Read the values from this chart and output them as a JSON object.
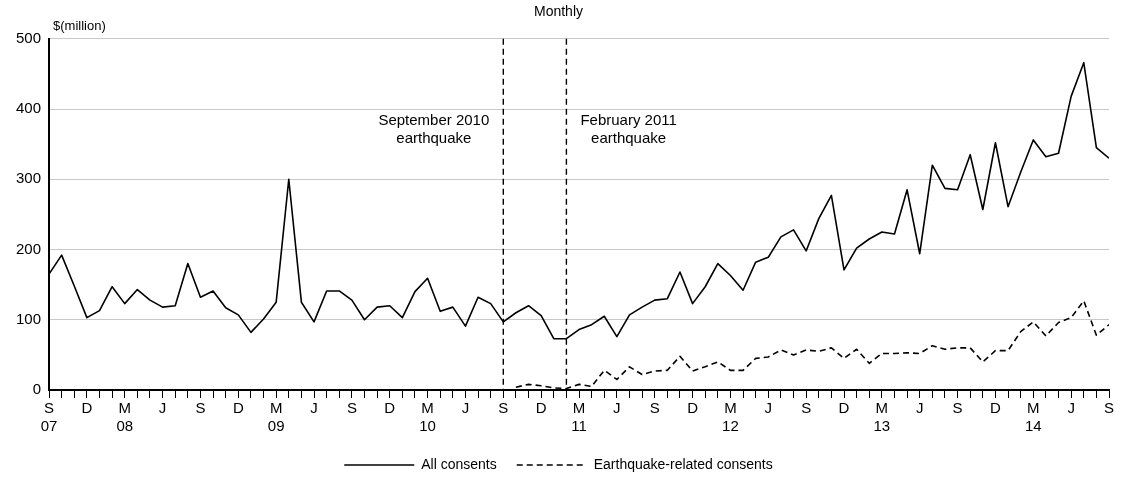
{
  "chart_data": {
    "type": "line",
    "title": "Monthly",
    "ylabel": "$(million)",
    "x": [
      "2007-09",
      "2007-10",
      "2007-11",
      "2007-12",
      "2008-01",
      "2008-02",
      "2008-03",
      "2008-04",
      "2008-05",
      "2008-06",
      "2008-07",
      "2008-08",
      "2008-09",
      "2008-10",
      "2008-11",
      "2008-12",
      "2009-01",
      "2009-02",
      "2009-03",
      "2009-04",
      "2009-05",
      "2009-06",
      "2009-07",
      "2009-08",
      "2009-09",
      "2009-10",
      "2009-11",
      "2009-12",
      "2010-01",
      "2010-02",
      "2010-03",
      "2010-04",
      "2010-05",
      "2010-06",
      "2010-07",
      "2010-08",
      "2010-09",
      "2010-10",
      "2010-11",
      "2010-12",
      "2011-01",
      "2011-02",
      "2011-03",
      "2011-04",
      "2011-05",
      "2011-06",
      "2011-07",
      "2011-08",
      "2011-09",
      "2011-10",
      "2011-11",
      "2011-12",
      "2012-01",
      "2012-02",
      "2012-03",
      "2012-04",
      "2012-05",
      "2012-06",
      "2012-07",
      "2012-08",
      "2012-09",
      "2012-10",
      "2012-11",
      "2012-12",
      "2013-01",
      "2013-02",
      "2013-03",
      "2013-04",
      "2013-05",
      "2013-06",
      "2013-07",
      "2013-08",
      "2013-09",
      "2013-10",
      "2013-11",
      "2013-12",
      "2014-01",
      "2014-02",
      "2014-03",
      "2014-04",
      "2014-05",
      "2014-06",
      "2014-07",
      "2014-08",
      "2014-09"
    ],
    "series": [
      {
        "name": "All consents",
        "color": "#000000",
        "line_style": "solid",
        "values": [
          165,
          192,
          148,
          103,
          113,
          147,
          123,
          143,
          128,
          118,
          120,
          180,
          132,
          141,
          117,
          107,
          82,
          101,
          125,
          300,
          125,
          97,
          141,
          141,
          128,
          100,
          118,
          120,
          103,
          140,
          159,
          112,
          118,
          91,
          132,
          123,
          97,
          110,
          120,
          106,
          73,
          73,
          86,
          93,
          105,
          76,
          107,
          118,
          128,
          130,
          168,
          123,
          147,
          180,
          163,
          142,
          182,
          189,
          218,
          228,
          198,
          244,
          277,
          171,
          202,
          215,
          225,
          222,
          285,
          194,
          320,
          287,
          285,
          335,
          257,
          352,
          261,
          310,
          356,
          332,
          337,
          418,
          466,
          345,
          330
        ]
      },
      {
        "name": "Earthquake-related consents",
        "color": "#000000",
        "line_style": "dashed",
        "values": [
          null,
          null,
          null,
          null,
          null,
          null,
          null,
          null,
          null,
          null,
          null,
          null,
          null,
          null,
          null,
          null,
          null,
          null,
          null,
          null,
          null,
          null,
          null,
          null,
          null,
          null,
          null,
          null,
          null,
          null,
          null,
          null,
          null,
          null,
          null,
          null,
          null,
          4,
          8,
          6,
          3,
          2,
          8,
          5,
          28,
          15,
          33,
          22,
          27,
          28,
          48,
          27,
          33,
          40,
          28,
          28,
          45,
          47,
          57,
          50,
          57,
          55,
          60,
          45,
          58,
          38,
          52,
          52,
          53,
          52,
          63,
          58,
          60,
          60,
          40,
          56,
          56,
          83,
          97,
          77,
          96,
          103,
          127,
          78,
          93
        ]
      }
    ],
    "xlim": [
      "2007-09",
      "2014-09"
    ],
    "xticks": [
      {
        "value": "2007-09",
        "label": "S\n07"
      },
      {
        "value": "2007-10",
        "label": null
      },
      {
        "value": "2007-11",
        "label": null
      },
      {
        "value": "2007-12",
        "label": "D"
      },
      {
        "value": "2008-01",
        "label": null
      },
      {
        "value": "2008-02",
        "label": null
      },
      {
        "value": "2008-03",
        "label": "M\n08"
      },
      {
        "value": "2008-04",
        "label": null
      },
      {
        "value": "2008-05",
        "label": null
      },
      {
        "value": "2008-06",
        "label": "J"
      },
      {
        "value": "2008-07",
        "label": null
      },
      {
        "value": "2008-08",
        "label": null
      },
      {
        "value": "2008-09",
        "label": "S"
      },
      {
        "value": "2008-10",
        "label": null
      },
      {
        "value": "2008-11",
        "label": null
      },
      {
        "value": "2008-12",
        "label": "D"
      },
      {
        "value": "2009-01",
        "label": null
      },
      {
        "value": "2009-02",
        "label": null
      },
      {
        "value": "2009-03",
        "label": "M\n09"
      },
      {
        "value": "2009-04",
        "label": null
      },
      {
        "value": "2009-05",
        "label": null
      },
      {
        "value": "2009-06",
        "label": "J"
      },
      {
        "value": "2009-07",
        "label": null
      },
      {
        "value": "2009-08",
        "label": null
      },
      {
        "value": "2009-09",
        "label": "S"
      },
      {
        "value": "2009-10",
        "label": null
      },
      {
        "value": "2009-11",
        "label": null
      },
      {
        "value": "2009-12",
        "label": "D"
      },
      {
        "value": "2010-01",
        "label": null
      },
      {
        "value": "2010-02",
        "label": null
      },
      {
        "value": "2010-03",
        "label": "M\n10"
      },
      {
        "value": "2010-04",
        "label": null
      },
      {
        "value": "2010-05",
        "label": null
      },
      {
        "value": "2010-06",
        "label": "J"
      },
      {
        "value": "2010-07",
        "label": null
      },
      {
        "value": "2010-08",
        "label": null
      },
      {
        "value": "2010-09",
        "label": "S"
      },
      {
        "value": "2010-10",
        "label": null
      },
      {
        "value": "2010-11",
        "label": null
      },
      {
        "value": "2010-12",
        "label": "D"
      },
      {
        "value": "2011-01",
        "label": null
      },
      {
        "value": "2011-02",
        "label": null
      },
      {
        "value": "2011-03",
        "label": "M\n11"
      },
      {
        "value": "2011-04",
        "label": null
      },
      {
        "value": "2011-05",
        "label": null
      },
      {
        "value": "2011-06",
        "label": "J"
      },
      {
        "value": "2011-07",
        "label": null
      },
      {
        "value": "2011-08",
        "label": null
      },
      {
        "value": "2011-09",
        "label": "S"
      },
      {
        "value": "2011-10",
        "label": null
      },
      {
        "value": "2011-11",
        "label": null
      },
      {
        "value": "2011-12",
        "label": "D"
      },
      {
        "value": "2012-01",
        "label": null
      },
      {
        "value": "2012-02",
        "label": null
      },
      {
        "value": "2012-03",
        "label": "M\n12"
      },
      {
        "value": "2012-04",
        "label": null
      },
      {
        "value": "2012-05",
        "label": null
      },
      {
        "value": "2012-06",
        "label": "J"
      },
      {
        "value": "2012-07",
        "label": null
      },
      {
        "value": "2012-08",
        "label": null
      },
      {
        "value": "2012-09",
        "label": "S"
      },
      {
        "value": "2012-10",
        "label": null
      },
      {
        "value": "2012-11",
        "label": null
      },
      {
        "value": "2012-12",
        "label": "D"
      },
      {
        "value": "2013-01",
        "label": null
      },
      {
        "value": "2013-02",
        "label": null
      },
      {
        "value": "2013-03",
        "label": "M\n13"
      },
      {
        "value": "2013-04",
        "label": null
      },
      {
        "value": "2013-05",
        "label": null
      },
      {
        "value": "2013-06",
        "label": "J"
      },
      {
        "value": "2013-07",
        "label": null
      },
      {
        "value": "2013-08",
        "label": null
      },
      {
        "value": "2013-09",
        "label": "S"
      },
      {
        "value": "2013-10",
        "label": null
      },
      {
        "value": "2013-11",
        "label": null
      },
      {
        "value": "2013-12",
        "label": "D"
      },
      {
        "value": "2014-01",
        "label": null
      },
      {
        "value": "2014-02",
        "label": null
      },
      {
        "value": "2014-03",
        "label": "M\n14"
      },
      {
        "value": "2014-04",
        "label": null
      },
      {
        "value": "2014-05",
        "label": null
      },
      {
        "value": "2014-06",
        "label": "J"
      },
      {
        "value": "2014-07",
        "label": null
      },
      {
        "value": "2014-08",
        "label": null
      },
      {
        "value": "2014-09",
        "label": "S"
      }
    ],
    "ylim": [
      0,
      500
    ],
    "yticks": [
      0,
      100,
      200,
      300,
      400,
      500
    ],
    "ref_lines": [
      {
        "axis": "x",
        "value": "2010-09",
        "label": "September 2010\nearthquake",
        "color": "#000000",
        "line_style": "dashed"
      },
      {
        "axis": "x",
        "value": "2011-02",
        "label": "February 2011\nearthquake",
        "color": "#000000",
        "line_style": "dashed"
      }
    ],
    "grid": "y",
    "legend": "bottom",
    "marker": "none"
  }
}
